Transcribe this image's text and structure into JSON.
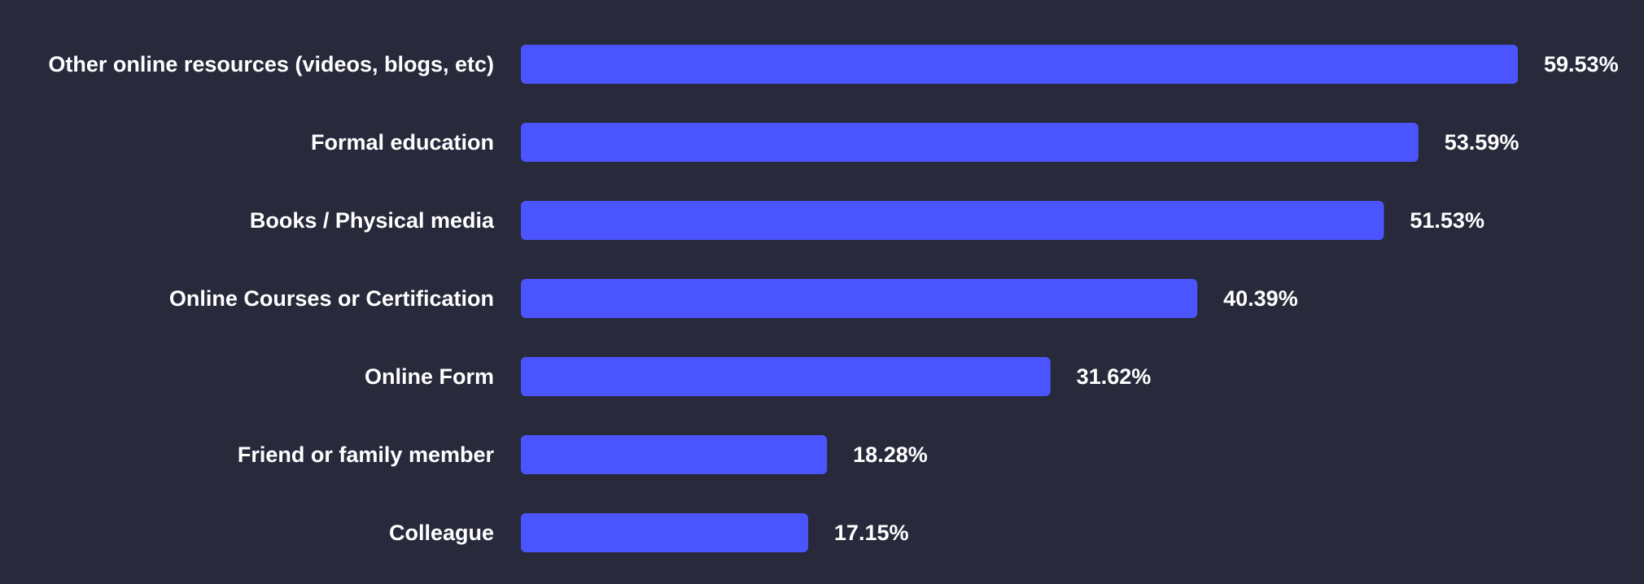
{
  "chart_data": {
    "type": "bar",
    "orientation": "horizontal",
    "categories": [
      "Other online resources (videos, blogs, etc)",
      "Formal education",
      "Books / Physical media",
      "Online Courses or Certification",
      "Online Form",
      "Friend or family member",
      "Colleague"
    ],
    "values": [
      59.53,
      53.59,
      51.53,
      40.39,
      31.62,
      18.28,
      17.15
    ],
    "value_labels": [
      "59.53%",
      "53.59%",
      "51.53%",
      "40.39%",
      "31.62%",
      "18.28%",
      "17.15%"
    ],
    "xlim": [
      0,
      59.53
    ],
    "grid": false,
    "bar_color": "#4b55ff",
    "background_color": "#282a3c",
    "text_color": "#ffffff"
  }
}
